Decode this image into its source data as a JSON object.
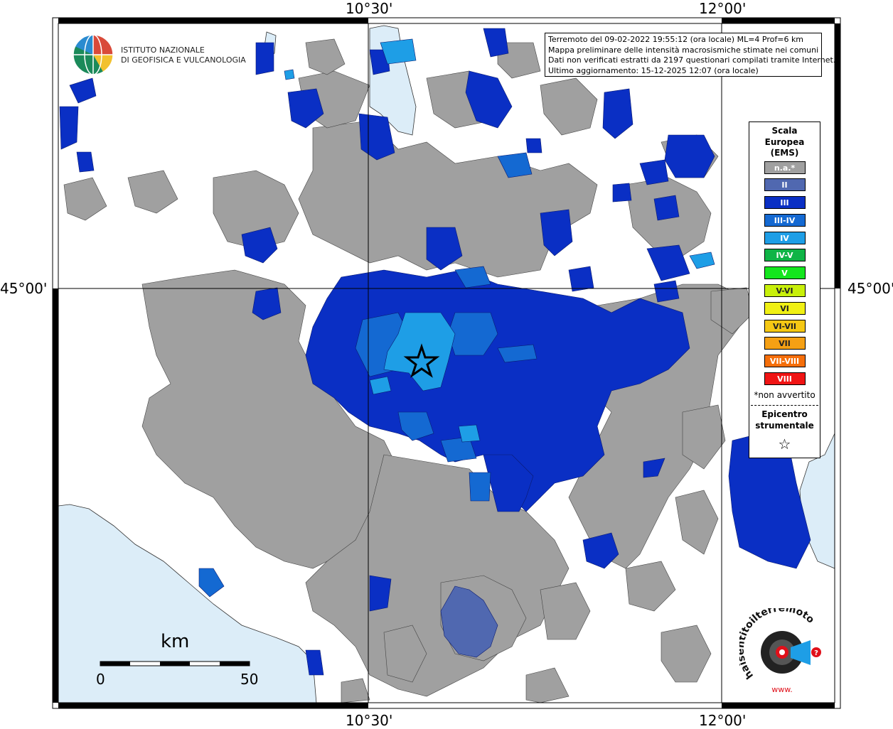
{
  "axes": {
    "top_left": "10°30'",
    "top_right": "12°00'",
    "bottom_left": "10°30'",
    "bottom_right": "12°00'",
    "left_lat": "45°00'",
    "right_lat": "45°00'"
  },
  "logo": {
    "line1": "ISTITUTO NAZIONALE",
    "line2": "DI GEOFISICA E VULCANOLOGIA"
  },
  "info": {
    "line1": "Terremoto del 09-02-2022 19:55:12 (ora locale) ML=4 Prof=6 km",
    "line2": "Mappa preliminare delle intensità macrosismiche stimate nei comuni",
    "line3": "Dati non verificati estratti da 2197 questionari compilati tramite Internet.",
    "line4": "Ultimo aggiornamento: 15-12-2025 12:07 (ora locale)"
  },
  "legend": {
    "title_line1": "Scala",
    "title_line2": "Europea",
    "title_line3": "(EMS)",
    "items": [
      {
        "label": "n.a.*",
        "color": "#a0a0a0"
      },
      {
        "label": "II",
        "color": "#5068b0"
      },
      {
        "label": "III",
        "color": "#0a2fc4"
      },
      {
        "label": "III-IV",
        "color": "#1469d2"
      },
      {
        "label": "IV",
        "color": "#1e9ee6"
      },
      {
        "label": "IV-V",
        "color": "#0fb446"
      },
      {
        "label": "V",
        "color": "#14e61e"
      },
      {
        "label": "V-VI",
        "color": "#c8f00a"
      },
      {
        "label": "VI",
        "color": "#f0f014"
      },
      {
        "label": "VI-VII",
        "color": "#f5c814"
      },
      {
        "label": "VII",
        "color": "#f5a014"
      },
      {
        "label": "VII-VIII",
        "color": "#f56e0a"
      },
      {
        "label": "VIII",
        "color": "#f01414"
      }
    ],
    "note": "*non avvertito",
    "epicenter_line1": "Epicentro",
    "epicenter_line2": "strumentale",
    "epicenter_symbol": "☆"
  },
  "scale_bar": {
    "unit": "km",
    "min_label": "0",
    "max_label": "50"
  },
  "hsi_logo": {
    "text": "haisentitoilterremoto.it",
    "www": "www."
  },
  "colors": {
    "sea": "#dcedf8",
    "na": "#a0a0a0",
    "iii": "#0a2fc4",
    "iii_iv": "#1469d2",
    "iv": "#1e9ee6",
    "ii": "#5068b0"
  }
}
